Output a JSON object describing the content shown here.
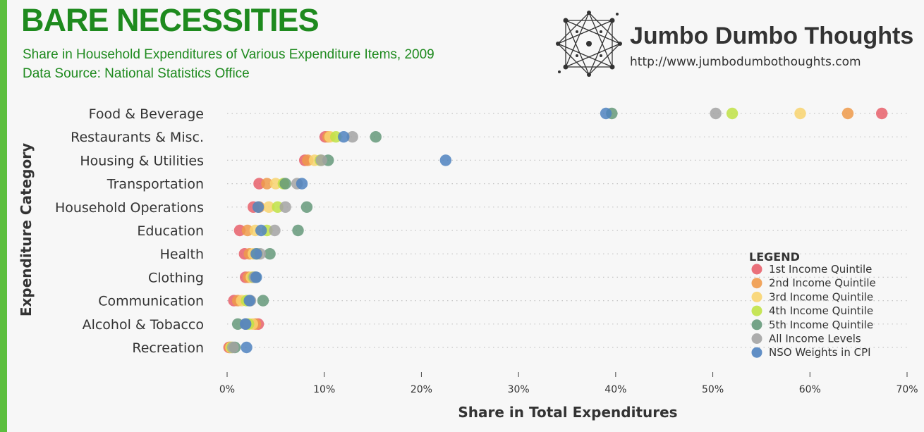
{
  "header": {
    "title": "BARE NECESSITIES",
    "subtitle": "Share in Household Expenditures of Various Expenditure Items, 2009",
    "source": "Data Source: National Statistics Office"
  },
  "brand": {
    "name": "Jumbo Dumbo Thoughts",
    "url": "http://www.jumbodumbothoughts.com",
    "logo_icon": "network-star-logo-icon"
  },
  "chart_data": {
    "type": "scatter",
    "xlabel": "Share in Total Expenditures",
    "ylabel": "Expenditure Category",
    "xlim": [
      0,
      70
    ],
    "x_ticks": [
      "0%",
      "10%",
      "20%",
      "30%",
      "40%",
      "50%",
      "60%",
      "70%"
    ],
    "x_tick_values": [
      0,
      10,
      20,
      30,
      40,
      50,
      60,
      70
    ],
    "grid": "dotted horizontal",
    "legend_title": "LEGEND",
    "legend_position": "bottom-right",
    "categories": [
      "Food & Beverage",
      "Restaurants & Misc.",
      "Housing & Utilities",
      "Transportation",
      "Household Operations",
      "Education",
      "Health",
      "Clothing",
      "Communication",
      "Alcohol & Tobacco",
      "Recreation"
    ],
    "series": [
      {
        "name": "1st Income Quintile",
        "color": "#e8606b",
        "values": [
          67.4,
          10.1,
          8.0,
          3.3,
          2.7,
          1.3,
          1.8,
          1.9,
          0.7,
          3.2,
          0.2
        ]
      },
      {
        "name": "2nd Income Quintile",
        "color": "#ef9a4a",
        "values": [
          63.9,
          10.4,
          8.3,
          4.1,
          3.3,
          2.1,
          2.3,
          2.2,
          1.1,
          2.9,
          0.3
        ]
      },
      {
        "name": "3rd Income Quintile",
        "color": "#f8d46f",
        "values": [
          59.0,
          10.6,
          9.0,
          5.0,
          4.3,
          2.9,
          2.7,
          2.5,
          1.5,
          2.6,
          0.4
        ]
      },
      {
        "name": "4th Income Quintile",
        "color": "#c0e245",
        "values": [
          52.0,
          11.2,
          9.6,
          5.8,
          5.2,
          4.1,
          3.1,
          2.7,
          2.0,
          2.2,
          0.5
        ]
      },
      {
        "name": "5th Income Quintile",
        "color": "#65997a",
        "values": [
          39.6,
          15.3,
          10.4,
          6.0,
          8.2,
          7.3,
          4.4,
          2.9,
          3.7,
          1.1,
          0.8
        ]
      },
      {
        "name": "All Income Levels",
        "color": "#a3a3a3",
        "values": [
          50.3,
          12.9,
          9.7,
          7.2,
          6.0,
          4.9,
          3.4,
          2.8,
          2.4,
          1.9,
          0.6
        ]
      },
      {
        "name": "NSO Weights in CPI",
        "color": "#4f82bf",
        "values": [
          39.0,
          12.0,
          22.5,
          7.7,
          3.2,
          3.5,
          3.0,
          3.0,
          2.3,
          1.9,
          2.0
        ]
      }
    ]
  }
}
